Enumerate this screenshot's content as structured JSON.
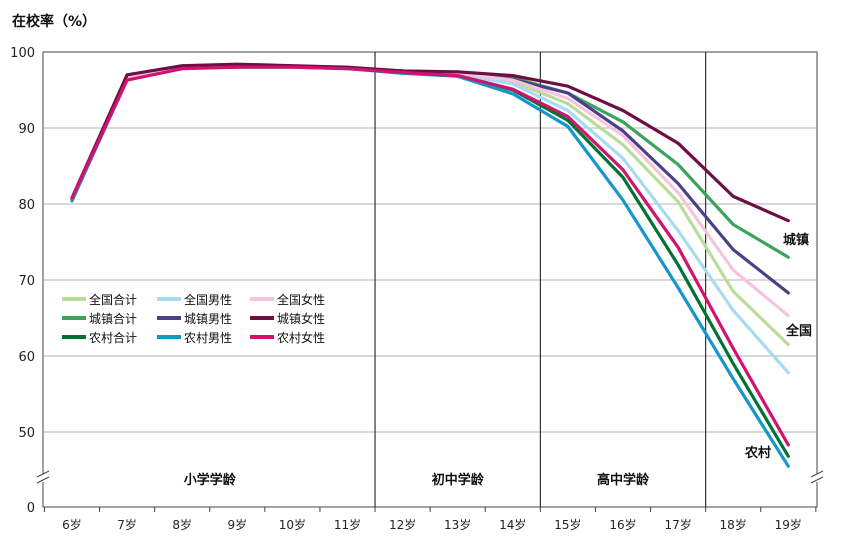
{
  "chart_data": {
    "type": "line",
    "ylabel": "在校率（%）",
    "x": [
      "6岁",
      "7岁",
      "8岁",
      "9岁",
      "10岁",
      "11岁",
      "12岁",
      "13岁",
      "14岁",
      "15岁",
      "16岁",
      "17岁",
      "18岁",
      "19岁"
    ],
    "y_ticks": [
      "100",
      "90",
      "80",
      "70",
      "60",
      "50",
      "0"
    ],
    "ylim": [
      45,
      100
    ],
    "y_axis_break": true,
    "grid": true,
    "legend_position": "left",
    "sections": [
      {
        "label": "小学学龄",
        "from": "6岁",
        "to": "11岁"
      },
      {
        "label": "初中学龄",
        "from": "12岁",
        "to": "14岁"
      },
      {
        "label": "高中学龄",
        "from": "15岁",
        "to": "17岁"
      }
    ],
    "group_labels": [
      "城镇",
      "全国",
      "农村"
    ],
    "series": [
      {
        "name": "全国合计",
        "color": "#b9dd98",
        "values": [
          80.7,
          96.6,
          98.0,
          98.2,
          98.1,
          97.9,
          97.5,
          97.2,
          96.1,
          93.2,
          87.8,
          80.3,
          68.5,
          61.5
        ]
      },
      {
        "name": "城镇合计",
        "color": "#3aa55a",
        "values": [
          80.8,
          96.8,
          98.1,
          98.3,
          98.1,
          97.9,
          97.5,
          97.3,
          96.6,
          94.6,
          90.8,
          85.2,
          77.3,
          73.0
        ]
      },
      {
        "name": "农村合计",
        "color": "#007233",
        "values": [
          80.6,
          96.5,
          98.0,
          98.1,
          98.1,
          97.9,
          97.4,
          97.0,
          95.0,
          91.0,
          83.5,
          72.0,
          59.0,
          46.8
        ]
      },
      {
        "name": "全国男性",
        "color": "#a6dbf2",
        "values": [
          80.5,
          96.5,
          98.0,
          98.1,
          98.1,
          97.9,
          97.4,
          97.1,
          95.8,
          92.3,
          86.0,
          76.5,
          66.0,
          57.8
        ]
      },
      {
        "name": "城镇男性",
        "color": "#4c3f87",
        "values": [
          80.7,
          96.7,
          98.1,
          98.2,
          98.1,
          97.9,
          97.5,
          97.2,
          96.4,
          94.6,
          89.6,
          82.7,
          74.0,
          68.3
        ]
      },
      {
        "name": "农村男性",
        "color": "#1696c8",
        "values": [
          80.4,
          96.4,
          97.9,
          98.0,
          98.0,
          97.8,
          97.2,
          96.8,
          94.5,
          90.2,
          80.5,
          69.0,
          57.0,
          45.5
        ]
      },
      {
        "name": "全国女性",
        "color": "#f7c4de",
        "values": [
          80.8,
          96.7,
          98.1,
          98.2,
          98.1,
          97.9,
          97.5,
          97.2,
          96.3,
          93.9,
          89.0,
          81.5,
          71.3,
          65.3
        ]
      },
      {
        "name": "城镇女性",
        "color": "#6b0f45",
        "values": [
          80.8,
          97.0,
          98.2,
          98.4,
          98.2,
          98.0,
          97.5,
          97.4,
          96.9,
          95.5,
          92.3,
          88.0,
          81.0,
          77.8
        ]
      },
      {
        "name": "农村女性",
        "color": "#d1126f",
        "values": [
          80.8,
          96.3,
          97.8,
          98.0,
          98.0,
          97.8,
          97.3,
          96.9,
          95.1,
          91.5,
          84.5,
          74.3,
          61.0,
          48.3
        ]
      }
    ]
  }
}
